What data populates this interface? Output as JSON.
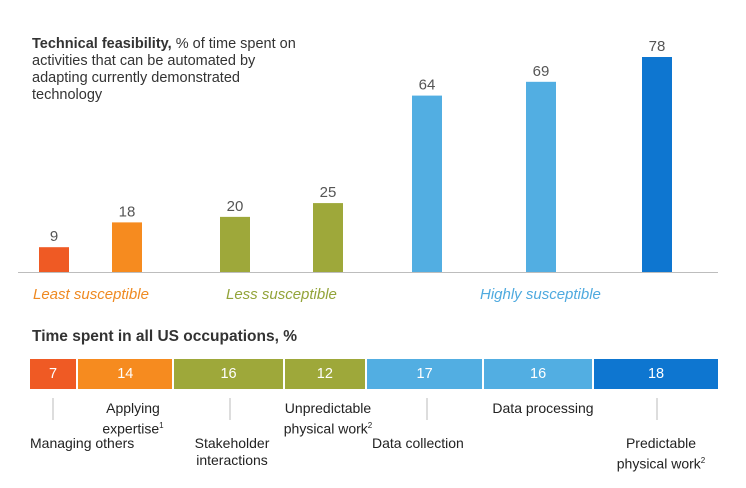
{
  "header": {
    "title_bold": "Technical feasibility,",
    "title_rest": " % of time spent on activities that can be automated by adapting currently demonstrated technology"
  },
  "chart_data": {
    "type": "bar",
    "title": "Technical feasibility, % of time spent on activities that can be automated by adapting currently demonstrated technology",
    "categories": [
      "Managing others",
      "Applying expertise",
      "Stakeholder interactions",
      "Unpredictable physical work",
      "Data collection",
      "Data processing",
      "Predictable physical work"
    ],
    "values": [
      9,
      18,
      20,
      25,
      64,
      69,
      78
    ],
    "colors": [
      "#ef5a24",
      "#f68b1f",
      "#9ea83a",
      "#9ea83a",
      "#52aee2",
      "#52aee2",
      "#0e76d0"
    ],
    "ylim": [
      0,
      85
    ],
    "groups": [
      {
        "label": "Least susceptible",
        "color": "#ef8a22"
      },
      {
        "label": "Less susceptible",
        "color": "#93a43a"
      },
      {
        "label": "Highly susceptible",
        "color": "#4faadf"
      }
    ]
  },
  "occupations": {
    "title": "Time spent in all US occupations, %",
    "segments": [
      {
        "value": "7",
        "share": 7,
        "color": "#ef5a24"
      },
      {
        "value": "14",
        "share": 14,
        "color": "#f68b1f"
      },
      {
        "value": "16",
        "share": 16,
        "color": "#9ea83a"
      },
      {
        "value": "12",
        "share": 12,
        "color": "#9ea83a"
      },
      {
        "value": "17",
        "share": 17,
        "color": "#52aee2"
      },
      {
        "value": "16",
        "share": 16,
        "color": "#52aee2"
      },
      {
        "value": "18",
        "share": 18,
        "color": "#0e76d0"
      }
    ],
    "labels": {
      "managing": "Managing others",
      "applying": "Applying expertise",
      "stakeholder": "Stakeholder interactions",
      "unpredictable": "Unpredictable physical work",
      "data_collection": "Data collection",
      "data_processing": "Data processing",
      "predictable": "Predictable physical work"
    }
  }
}
